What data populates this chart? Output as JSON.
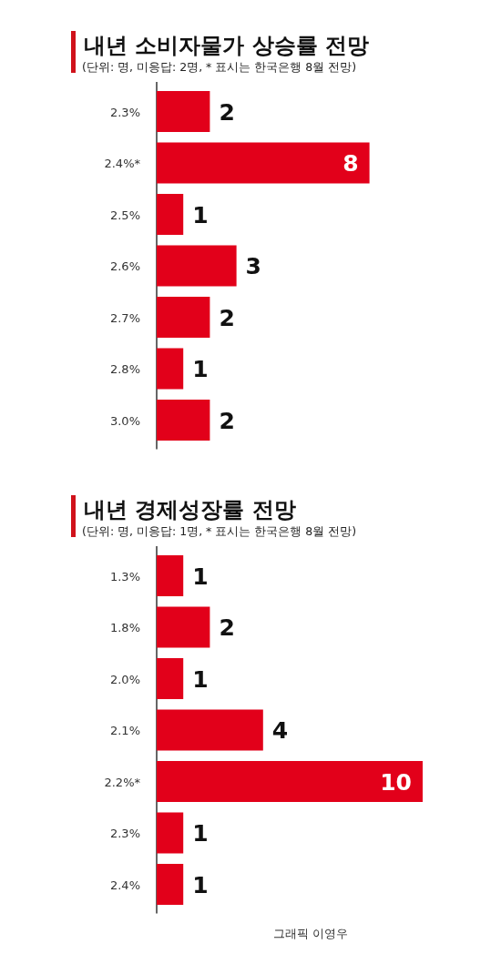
{
  "chart_data": [
    {
      "type": "bar",
      "orientation": "horizontal",
      "title": "내년 소비자물가 상승률 전망",
      "subtitle": "(단위: 명, 미응답: 2명, * 표시는 한국은행 8월 전망)",
      "categories": [
        "2.3%",
        "2.4%*",
        "2.5%",
        "2.6%",
        "2.7%",
        "2.8%",
        "3.0%"
      ],
      "values": [
        2,
        8,
        1,
        3,
        2,
        1,
        2
      ],
      "color": "#e2001a",
      "data_labels": true
    },
    {
      "type": "bar",
      "orientation": "horizontal",
      "title": "내년 경제성장률 전망",
      "subtitle": "(단위: 명, 미응답: 1명, * 표시는 한국은행 8월 전망)",
      "categories": [
        "1.3%",
        "1.8%",
        "2.0%",
        "2.1%",
        "2.2%*",
        "2.3%",
        "2.4%"
      ],
      "values": [
        1,
        2,
        1,
        4,
        10,
        1,
        1
      ],
      "color": "#e2001a",
      "data_labels": true,
      "annotations": [
        "그래픽 이영우"
      ]
    }
  ]
}
